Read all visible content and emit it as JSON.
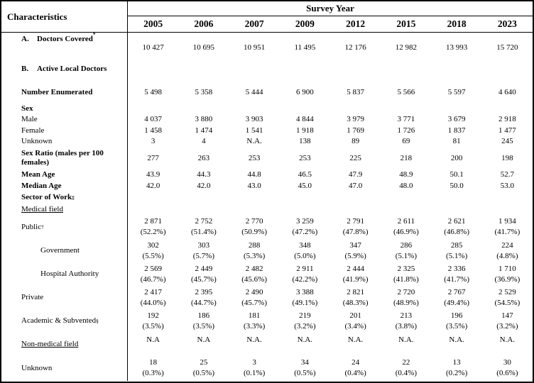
{
  "header": {
    "characteristics": "Characteristics",
    "survey_year": "Survey Year",
    "years": [
      "2005",
      "2006",
      "2007",
      "2009",
      "2012",
      "2015",
      "2018",
      "2023"
    ]
  },
  "table": {
    "rows": [
      {
        "prefix": "A.",
        "label": "Doctors Covered",
        "sup": "*",
        "values": [
          "10 427",
          "10 695",
          "10 951",
          "11 495",
          "12 176",
          "12 982",
          "13 993",
          "15 720"
        ]
      },
      {
        "prefix": "B.",
        "label": "Active Local Doctors",
        "values": [
          "",
          "",
          "",
          "",
          "",
          "",
          "",
          ""
        ]
      },
      {
        "label": "Number Enumerated",
        "values": [
          "5 498",
          "5 358",
          "5 444",
          "6 900",
          "5 837",
          "5 566",
          "5 597",
          "4 640"
        ]
      },
      {
        "label": "Sex",
        "values": [
          "",
          "",
          "",
          "",
          "",
          "",
          "",
          ""
        ]
      },
      {
        "label": "Male",
        "values": [
          "4 037",
          "3 880",
          "3 903",
          "4 844",
          "3 979",
          "3 771",
          "3 679",
          "2 918"
        ]
      },
      {
        "label": "Female",
        "values": [
          "1 458",
          "1 474",
          "1 541",
          "1 918",
          "1 769",
          "1 726",
          "1 837",
          "1 477"
        ]
      },
      {
        "label": "Unknown",
        "values": [
          "3",
          "4",
          "N.A.",
          "138",
          "89",
          "69",
          "81",
          "245"
        ]
      },
      {
        "label": "Sex Ratio (males per 100 females)",
        "values": [
          "277",
          "263",
          "253",
          "253",
          "225",
          "218",
          "200",
          "198"
        ]
      },
      {
        "label": "Mean Age",
        "values": [
          "43.9",
          "44.3",
          "44.8",
          "46.5",
          "47.9",
          "48.9",
          "50.1",
          "52.7"
        ]
      },
      {
        "label": "Median Age",
        "values": [
          "42.0",
          "42.0",
          "43.0",
          "45.0",
          "47.0",
          "48.0",
          "50.0",
          "53.0"
        ]
      },
      {
        "label": "Sector of Work",
        "sup": "‡",
        "values": [
          "",
          "",
          "",
          "",
          "",
          "",
          "",
          ""
        ]
      },
      {
        "label": "Medical field",
        "values": [
          "",
          "",
          "",
          "",
          "",
          "",
          "",
          ""
        ]
      },
      {
        "label": "Public",
        "sup": "†",
        "values": [
          "2 871\n(52.2%)",
          "2 752\n(51.4%)",
          "2 770\n(50.9%)",
          "3 259\n(47.2%)",
          "2 791\n(47.8%)",
          "2 611\n(46.9%)",
          "2 621\n(46.8%)",
          "1 934\n(41.7%)"
        ]
      },
      {
        "label": "Government",
        "values": [
          "302\n(5.5%)",
          "303\n(5.7%)",
          "288\n(5.3%)",
          "348\n(5.0%)",
          "347\n(5.9%)",
          "286\n(5.1%)",
          "285\n(5.1%)",
          "224\n(4.8%)"
        ]
      },
      {
        "label": "Hospital Authority",
        "values": [
          "2 569\n(46.7%)",
          "2 449\n(45.7%)",
          "2 482\n(45.6%)",
          "2 911\n(42.2%)",
          "2 444\n(41.9%)",
          "2 325\n(41.8%)",
          "2 336\n(41.7%)",
          "1 710\n(36.9%)"
        ]
      },
      {
        "label": "Private",
        "values": [
          "2 417\n(44.0%)",
          "2 395\n(44.7%)",
          "2 490\n(45.7%)",
          "3 388\n(49.1%)",
          "2 821\n(48.3%)",
          "2 720\n(48.9%)",
          "2 767\n(49.4%)",
          "2 529\n(54.5%)"
        ]
      },
      {
        "label": "Academic & Subvented",
        "sup": "§",
        "values": [
          "192\n(3.5%)",
          "186\n(3.5%)",
          "181\n(3.3%)",
          "219\n(3.2%)",
          "201\n(3.4%)",
          "213\n(3.8%)",
          "196\n(3.5%)",
          "147\n(3.2%)"
        ]
      },
      {
        "label": "Non-medical field",
        "values": [
          "N.A",
          "N.A",
          "N.A.",
          "N.A.",
          "N.A.",
          "N.A.",
          "N.A.",
          "N.A."
        ]
      },
      {
        "label": "Unknown",
        "values": [
          "18\n(0.3%)",
          "25\n(0.5%)",
          "3\n(0.1%)",
          "34\n(0.5%)",
          "24\n(0.4%)",
          "22\n(0.4%)",
          "13\n(0.2%)",
          "30\n(0.6%)"
        ]
      }
    ]
  }
}
